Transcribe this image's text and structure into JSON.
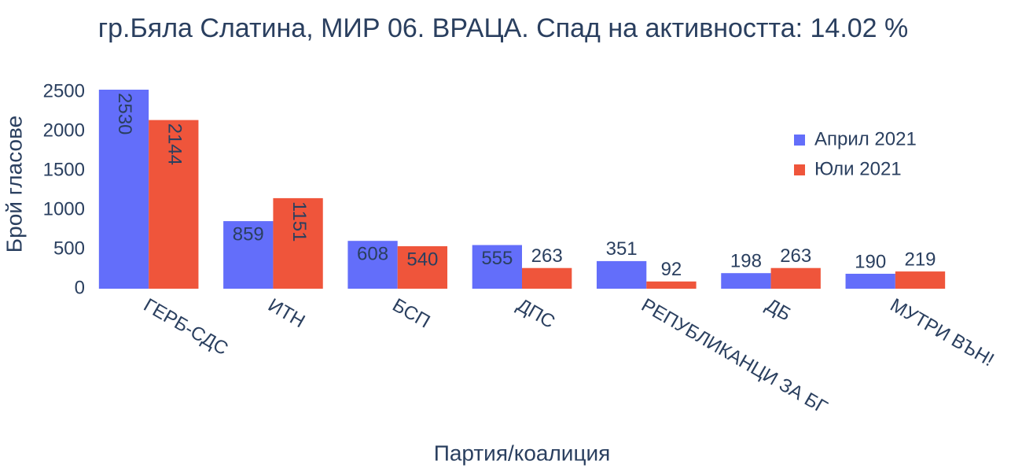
{
  "chart_data": {
    "type": "bar",
    "title": "гр.Бяла Слатина, МИР 06. ВРАЦА. Спад на активността: 14.02 %",
    "x_label": "Партия/коалиция",
    "y_label": "Брой гласове",
    "categories": [
      "ГЕРБ-СДС",
      "ИТН",
      "БСП",
      "ДПС",
      "РЕПУБЛИКАНЦИ ЗА БГ",
      "ДБ",
      "МУТРИ ВЪН!"
    ],
    "series": [
      {
        "name": "Април 2021",
        "color": "#636efa",
        "values": [
          2530,
          859,
          608,
          555,
          351,
          198,
          190
        ]
      },
      {
        "name": "Юли 2021",
        "color": "#ef553b",
        "values": [
          2144,
          1151,
          540,
          263,
          92,
          263,
          219
        ]
      }
    ],
    "ylim": [
      0,
      2663
    ],
    "yticks": [
      0,
      500,
      1000,
      1500,
      2000,
      2500
    ],
    "legend": "upper right"
  }
}
